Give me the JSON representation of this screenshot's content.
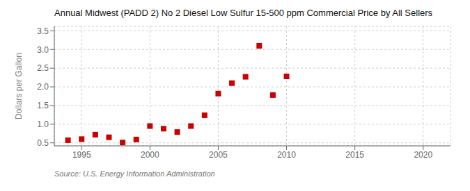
{
  "chart_data": {
    "type": "scatter",
    "title": "Annual Midwest (PADD 2) No 2 Diesel Low Sulfur 15-500 ppm Commercial Price by All Sellers",
    "ylabel": "Dollars per Gallon",
    "annotations": [
      "Source: U.S. Energy Information Administration"
    ],
    "x": [
      1994,
      1995,
      1996,
      1997,
      1998,
      1999,
      2000,
      2001,
      2002,
      2003,
      2004,
      2005,
      2006,
      2007,
      2008,
      2009,
      2010
    ],
    "values": [
      0.57,
      0.6,
      0.72,
      0.65,
      0.51,
      0.59,
      0.95,
      0.88,
      0.79,
      0.95,
      1.24,
      1.82,
      2.1,
      2.27,
      3.1,
      1.78,
      2.28
    ],
    "color": "#cc0000",
    "marker": "square",
    "xlim": [
      1993,
      2022
    ],
    "ylim": [
      0.42,
      3.62
    ],
    "xticks": [
      1995,
      2000,
      2005,
      2010,
      2015,
      2020
    ],
    "yticks": [
      0.5,
      {
        "value": 1.0,
        "label": "1.0"
      },
      1.5,
      {
        "value": 2.0,
        "label": "2.0"
      },
      2.5,
      {
        "value": 3.0,
        "label": "3.0"
      },
      3.5
    ],
    "grid": true
  }
}
